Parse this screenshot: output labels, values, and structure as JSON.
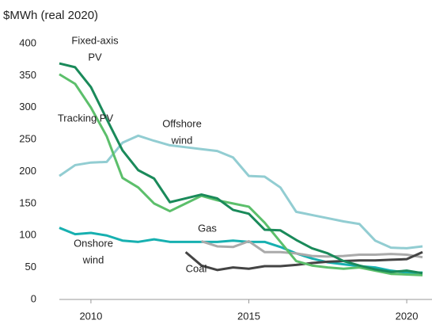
{
  "chart_data": {
    "type": "line",
    "title": "$MWh (real 2020)",
    "x": [
      2009,
      2009.5,
      2010,
      2010.5,
      2011,
      2011.5,
      2012,
      2012.5,
      2013,
      2013.5,
      2014,
      2014.5,
      2015,
      2015.5,
      2016,
      2016.5,
      2017,
      2017.5,
      2018,
      2018.5,
      2019,
      2019.5,
      2020,
      2020.5
    ],
    "xlim": [
      2009,
      2020.8
    ],
    "xticks": [
      2010,
      2015,
      2020
    ],
    "ylim": [
      0,
      400
    ],
    "yticks": [
      0,
      50,
      100,
      150,
      200,
      250,
      300,
      350,
      400
    ],
    "series": [
      {
        "name": "Offshore wind",
        "color": "#92cdd2",
        "values": [
          193,
          210,
          214,
          215,
          245,
          256,
          248,
          241,
          238,
          235,
          232,
          222,
          193,
          192,
          175,
          137,
          132,
          127,
          122,
          118,
          92,
          81,
          80,
          83
        ]
      },
      {
        "name": "Onshore wind",
        "color": "#17b0b0",
        "values": [
          112,
          102,
          104,
          100,
          92,
          90,
          94,
          90,
          90,
          90,
          90,
          92,
          90,
          90,
          82,
          72,
          64,
          58,
          55,
          52,
          50,
          45,
          42,
          42
        ]
      },
      {
        "name": "Gas",
        "color": "#aaaaaa",
        "values": [
          null,
          null,
          null,
          null,
          null,
          null,
          null,
          null,
          null,
          91,
          83,
          82,
          91,
          74,
          74,
          72,
          68,
          67,
          68,
          70,
          70,
          71,
          70,
          66
        ]
      },
      {
        "name": "Coal",
        "color": "#444444",
        "values": [
          null,
          null,
          null,
          null,
          null,
          null,
          null,
          null,
          74,
          53,
          46,
          50,
          48,
          52,
          52,
          54,
          57,
          59,
          60,
          61,
          61,
          62,
          63,
          74
        ]
      },
      {
        "name": "Tracking PV",
        "color": "#5cbf6b",
        "values": [
          352,
          337,
          300,
          255,
          190,
          175,
          150,
          138,
          150,
          162,
          155,
          150,
          145,
          120,
          90,
          60,
          53,
          50,
          48,
          50,
          45,
          40,
          39,
          38
        ]
      },
      {
        "name": "Fixed-axis PV",
        "color": "#1a8a5a",
        "values": [
          369,
          363,
          332,
          282,
          233,
          202,
          189,
          152,
          158,
          164,
          158,
          140,
          134,
          109,
          108,
          93,
          80,
          72,
          60,
          53,
          47,
          43,
          45,
          41
        ]
      }
    ],
    "annotations": [
      {
        "lines": [
          "Fixed-axis",
          "PV"
        ]
      },
      {
        "lines": [
          "Tracking PV"
        ]
      },
      {
        "lines": [
          "Offshore",
          "wind"
        ]
      },
      {
        "lines": [
          "Gas"
        ]
      },
      {
        "lines": [
          "Onshore",
          "wind"
        ]
      },
      {
        "lines": [
          "Coal"
        ]
      }
    ]
  }
}
